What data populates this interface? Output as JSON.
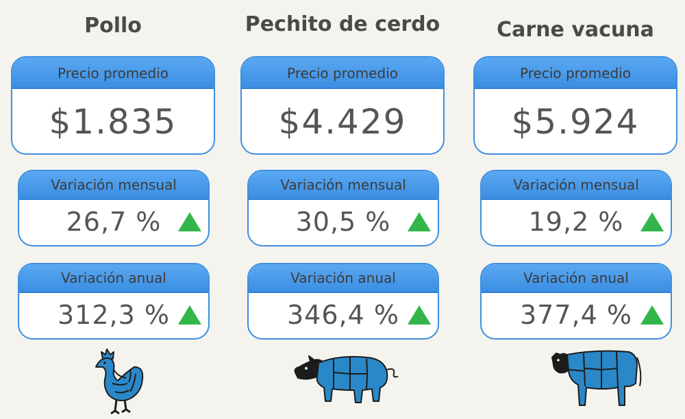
{
  "columns": [
    {
      "title": "Pollo",
      "price_label": "Precio promedio",
      "price": "$1.835",
      "monthly_label": "Variación mensual",
      "monthly": "26,7 %",
      "annual_label": "Variación anual",
      "annual": "312,3 %",
      "icon": "chicken-icon"
    },
    {
      "title": "Pechito de cerdo",
      "price_label": "Precio promedio",
      "price": "$4.429",
      "monthly_label": "Variación mensual",
      "monthly": "30,5 %",
      "annual_label": "Variación anual",
      "annual": "346,4 %",
      "icon": "pig-icon"
    },
    {
      "title": "Carne vacuna",
      "price_label": "Precio promedio",
      "price": "$5.924",
      "monthly_label": "Variación mensual",
      "monthly": "19,2 %",
      "annual_label": "Variación anual",
      "annual": "377,4 %",
      "icon": "cow-icon"
    }
  ],
  "colors": {
    "background": "#f4f3ee",
    "header_blue": "#3b8ee2",
    "trend_up_green": "#33b54a",
    "animal_blue": "#2b88c8"
  },
  "trend_icon": "triangle-up-icon"
}
